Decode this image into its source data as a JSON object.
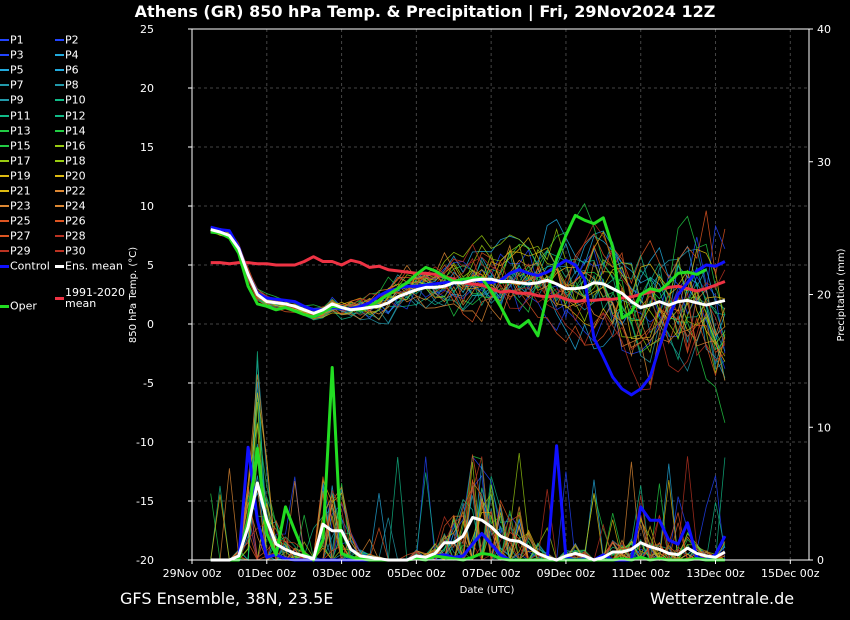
{
  "title": "Athens  (GR)  850 hPa Temp. & Precipitation | Fri, 29Nov2024 12Z",
  "footer": {
    "left": "GFS Ensemble, 38N, 23.5E",
    "right": "Wetterzentrale.de"
  },
  "colors": {
    "control": "#1010ff",
    "ens_mean": "#ffffff",
    "oper": "#22dd22",
    "climate_mean": "#ee3344",
    "members": [
      "#2244ff",
      "#22aadd",
      "#2299aa",
      "#11bb88",
      "#22cc44",
      "#99cc11",
      "#ddbb11",
      "#dd8833",
      "#dd5522",
      "#bb3322"
    ]
  },
  "chart_data": {
    "type": "line",
    "xlabel": "Date (UTC)",
    "ylabel": "850 hPa Temp. (°C)",
    "y2label": "Precipitation (mm)",
    "ylim": [
      -20,
      25
    ],
    "y2lim": [
      0,
      40
    ],
    "yticks": [
      "-20",
      "-15",
      "-10",
      "-5",
      "0",
      "5",
      "10",
      "15",
      "20",
      "25"
    ],
    "y2ticks": [
      "0",
      "10",
      "20",
      "30",
      "40"
    ],
    "xticks": [
      "29Nov 00z",
      "01Dec 00z",
      "03Dec 00z",
      "05Dec 00z",
      "07Dec 00z",
      "09Dec 00z",
      "11Dec 00z",
      "13Dec 00z",
      "15Dec 00z"
    ],
    "x_step_hours": 6,
    "grid": true,
    "legend_position": "left",
    "legend": {
      "members": [
        "P1",
        "P2",
        "P3",
        "P4",
        "P5",
        "P6",
        "P7",
        "P8",
        "P9",
        "P10",
        "P11",
        "P12",
        "P13",
        "P14",
        "P15",
        "P16",
        "P17",
        "P18",
        "P19",
        "P20",
        "P21",
        "P22",
        "P23",
        "P24",
        "P25",
        "P26",
        "P27",
        "P28",
        "P29",
        "P30"
      ],
      "control": "Control",
      "ens_mean": "Ens. mean",
      "oper": "Oper",
      "climate": "1991-2020 mean"
    },
    "series": [
      {
        "name": "Control",
        "kind": "temp",
        "start_index": 2,
        "values": [
          8.2,
          8.0,
          7.9,
          6.5,
          4.2,
          2.6,
          2.2,
          2.1,
          2.0,
          1.9,
          1.5,
          1.2,
          1.2,
          1.4,
          1.3,
          1.3,
          1.5,
          1.8,
          2.4,
          2.8,
          3.0,
          3.2,
          3.2,
          3.3,
          3.4,
          3.5,
          3.6,
          3.7,
          3.8,
          3.6,
          3.5,
          3.7,
          4.3,
          4.6,
          4.3,
          4.1,
          4.4,
          4.9,
          5.4,
          5.0,
          3.8,
          -1.2,
          -2.8,
          -4.5,
          -5.5,
          -6.0,
          -5.5,
          -4.5,
          -2.0,
          0.5,
          2.5,
          3.5,
          4.5,
          5.0,
          4.9,
          5.3
        ]
      },
      {
        "name": "Ens. mean",
        "kind": "temp",
        "start_index": 2,
        "values": [
          8.0,
          7.8,
          7.5,
          6.4,
          4.2,
          2.5,
          1.9,
          1.8,
          1.7,
          1.5,
          1.2,
          0.9,
          1.2,
          1.7,
          1.4,
          1.2,
          1.3,
          1.4,
          1.5,
          1.8,
          2.3,
          2.6,
          2.9,
          3.1,
          3.1,
          3.2,
          3.5,
          3.5,
          3.7,
          3.8,
          3.8,
          3.6,
          3.6,
          3.5,
          3.4,
          3.5,
          3.7,
          3.4,
          3.0,
          3.0,
          3.1,
          3.5,
          3.4,
          3.0,
          2.6,
          1.9,
          1.4,
          1.6,
          1.9,
          1.6,
          1.9,
          2.0,
          1.8,
          1.6,
          1.8,
          2.0
        ]
      },
      {
        "name": "Oper",
        "kind": "temp",
        "start_index": 2,
        "values": [
          7.8,
          7.7,
          7.3,
          6.0,
          3.2,
          1.7,
          1.5,
          1.2,
          1.4,
          1.1,
          0.8,
          0.6,
          1.0,
          1.5,
          1.4,
          1.2,
          1.2,
          1.5,
          2.0,
          2.5,
          3.0,
          3.5,
          4.2,
          4.8,
          4.5,
          4.0,
          3.6,
          3.8,
          3.9,
          3.9,
          2.8,
          1.5,
          0.0,
          -0.3,
          0.3,
          -1.0,
          2.5,
          5.5,
          7.5,
          9.2,
          8.8,
          8.5,
          9.0,
          6.5,
          0.5,
          1.0,
          2.5,
          3.0,
          2.8,
          3.5,
          4.3,
          4.4,
          4.2,
          4.6
        ]
      },
      {
        "name": "1991-2020 mean",
        "kind": "temp",
        "start_index": 2,
        "values": [
          5.2,
          5.2,
          5.1,
          5.2,
          5.2,
          5.1,
          5.1,
          5.0,
          5.0,
          5.0,
          5.3,
          5.7,
          5.3,
          5.3,
          5.0,
          5.4,
          5.2,
          4.8,
          4.9,
          4.6,
          4.5,
          4.4,
          4.3,
          4.3,
          4.2,
          4.0,
          3.8,
          3.5,
          3.4,
          3.3,
          3.0,
          2.7,
          2.8,
          2.6,
          2.6,
          2.4,
          2.3,
          2.4,
          2.1,
          1.9,
          2.0,
          2.0,
          2.1,
          2.1,
          2.2,
          2.3,
          2.5,
          2.7,
          2.9,
          3.1,
          3.2,
          3.0,
          2.8,
          3.0,
          3.3,
          3.6
        ]
      },
      {
        "name": "Ens. mean",
        "kind": "precip",
        "start_index": 2,
        "values": [
          0,
          0,
          0,
          0.3,
          2.5,
          5.8,
          3.0,
          1.2,
          0.8,
          0.5,
          0.3,
          0.1,
          2.7,
          2.2,
          2.2,
          0.8,
          0.3,
          0.2,
          0.1,
          0,
          0,
          0,
          0.3,
          0.2,
          0.5,
          1.3,
          1.3,
          1.8,
          3.2,
          3.0,
          2.5,
          1.8,
          1.5,
          1.4,
          1.0,
          0.5,
          0.2,
          0,
          0.3,
          0.5,
          0.3,
          0,
          0.2,
          0.6,
          0.6,
          0.8,
          1.3,
          1.0,
          0.8,
          0.5,
          0.4,
          0.9,
          0.5,
          0.3,
          0.2,
          0.6
        ]
      },
      {
        "name": "Control",
        "kind": "precip",
        "start_index": 2,
        "values": [
          0,
          0,
          0,
          0,
          8.5,
          3.0,
          0.2,
          0.4,
          0.1,
          0,
          0,
          0,
          0,
          0,
          0,
          0,
          0,
          0,
          0,
          0,
          0,
          0,
          0.3,
          0.2,
          0.3,
          0.4,
          0.2,
          0.3,
          1.2,
          2.0,
          1.2,
          0.4,
          0,
          0,
          0,
          0,
          0,
          8.6,
          0.2,
          0,
          0.1,
          0,
          0.4,
          0,
          0,
          0,
          4.0,
          3.0,
          3.0,
          1.5,
          1.2,
          2.8,
          0.2,
          0,
          0.4,
          1.8
        ]
      },
      {
        "name": "Oper",
        "kind": "precip",
        "start_index": 2,
        "values": [
          0,
          0,
          0,
          0,
          3.0,
          8.4,
          2.0,
          0.4,
          4.0,
          2.2,
          0.5,
          0,
          1.5,
          14.5,
          0.5,
          0.2,
          0.1,
          0,
          0,
          0,
          0,
          0,
          0.1,
          0,
          0.3,
          0.2,
          0.1,
          0,
          0.2,
          0.5,
          0.4,
          0.1,
          0,
          0,
          0,
          0,
          0,
          0,
          0,
          0,
          0,
          0,
          0,
          0,
          0.1,
          0,
          0.2,
          0,
          0.1,
          0,
          0,
          0,
          0.1,
          0,
          0,
          0
        ]
      }
    ]
  }
}
